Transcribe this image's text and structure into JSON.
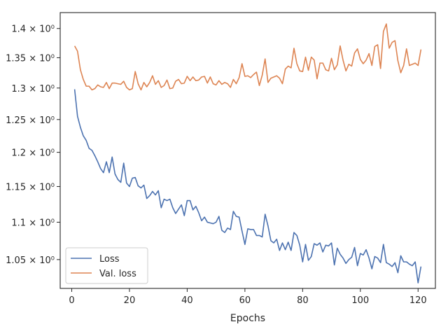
{
  "chart_data": {
    "type": "line",
    "title": "",
    "xlabel": "Epochs",
    "ylabel": "",
    "yscale": "log",
    "xlim": [
      -4,
      126
    ],
    "ylim": [
      1.013,
      1.428
    ],
    "grid": false,
    "legend_position": "lower-left",
    "x_ticks": [
      0,
      20,
      40,
      60,
      80,
      100,
      120
    ],
    "y_ticks": [
      {
        "value": 1.05,
        "label": "1.05 × 10⁰"
      },
      {
        "value": 1.1,
        "label": "1.1 × 10⁰"
      },
      {
        "value": 1.15,
        "label": "1.15 × 10⁰"
      },
      {
        "value": 1.2,
        "label": "1.2 × 10⁰"
      },
      {
        "value": 1.25,
        "label": "1.25 × 10⁰"
      },
      {
        "value": 1.3,
        "label": "1.3 × 10⁰"
      },
      {
        "value": 1.35,
        "label": "1.35 × 10⁰"
      },
      {
        "value": 1.4,
        "label": "1.4 × 10⁰"
      }
    ],
    "x": [
      1,
      2,
      3,
      4,
      5,
      6,
      7,
      8,
      9,
      10,
      11,
      12,
      13,
      14,
      15,
      16,
      17,
      18,
      19,
      20,
      21,
      22,
      23,
      24,
      25,
      26,
      27,
      28,
      29,
      30,
      31,
      32,
      33,
      34,
      35,
      36,
      37,
      38,
      39,
      40,
      41,
      42,
      43,
      44,
      45,
      46,
      47,
      48,
      49,
      50,
      51,
      52,
      53,
      54,
      55,
      56,
      57,
      58,
      59,
      60,
      61,
      62,
      63,
      64,
      65,
      66,
      67,
      68,
      69,
      70,
      71,
      72,
      73,
      74,
      75,
      76,
      77,
      78,
      79,
      80,
      81,
      82,
      83,
      84,
      85,
      86,
      87,
      88,
      89,
      90,
      91,
      92,
      93,
      94,
      95,
      96,
      97,
      98,
      99,
      100,
      101,
      102,
      103,
      104,
      105,
      106,
      107,
      108,
      109,
      110,
      111,
      112,
      113,
      114,
      115,
      116,
      117,
      118,
      119,
      120,
      121
    ],
    "series": [
      {
        "name": "Loss",
        "color": "#4c72b0",
        "values": [
          1.298,
          1.255,
          1.238,
          1.225,
          1.218,
          1.206,
          1.203,
          1.195,
          1.186,
          1.176,
          1.17,
          1.186,
          1.17,
          1.193,
          1.168,
          1.16,
          1.156,
          1.184,
          1.155,
          1.15,
          1.162,
          1.163,
          1.151,
          1.148,
          1.152,
          1.133,
          1.137,
          1.143,
          1.138,
          1.144,
          1.12,
          1.132,
          1.13,
          1.132,
          1.12,
          1.112,
          1.118,
          1.124,
          1.109,
          1.13,
          1.13,
          1.117,
          1.122,
          1.113,
          1.102,
          1.107,
          1.1,
          1.099,
          1.098,
          1.1,
          1.108,
          1.089,
          1.086,
          1.092,
          1.09,
          1.115,
          1.108,
          1.107,
          1.088,
          1.07,
          1.091,
          1.09,
          1.09,
          1.082,
          1.082,
          1.08,
          1.111,
          1.095,
          1.075,
          1.072,
          1.077,
          1.062,
          1.072,
          1.063,
          1.073,
          1.062,
          1.086,
          1.082,
          1.069,
          1.047,
          1.07,
          1.049,
          1.054,
          1.071,
          1.069,
          1.072,
          1.06,
          1.069,
          1.068,
          1.072,
          1.043,
          1.065,
          1.057,
          1.052,
          1.045,
          1.05,
          1.053,
          1.066,
          1.042,
          1.058,
          1.056,
          1.063,
          1.052,
          1.038,
          1.054,
          1.052,
          1.046,
          1.07,
          1.046,
          1.044,
          1.041,
          1.046,
          1.033,
          1.055,
          1.047,
          1.047,
          1.044,
          1.042,
          1.047,
          1.02,
          1.041
        ]
      },
      {
        "name": "Val. loss",
        "color": "#dd8452",
        "values": [
          1.37,
          1.361,
          1.33,
          1.314,
          1.303,
          1.303,
          1.297,
          1.299,
          1.305,
          1.302,
          1.301,
          1.309,
          1.299,
          1.308,
          1.308,
          1.307,
          1.306,
          1.311,
          1.301,
          1.297,
          1.299,
          1.327,
          1.307,
          1.297,
          1.309,
          1.302,
          1.309,
          1.32,
          1.306,
          1.312,
          1.301,
          1.304,
          1.313,
          1.299,
          1.3,
          1.311,
          1.314,
          1.307,
          1.308,
          1.319,
          1.312,
          1.318,
          1.312,
          1.313,
          1.318,
          1.319,
          1.308,
          1.318,
          1.307,
          1.305,
          1.312,
          1.306,
          1.309,
          1.307,
          1.301,
          1.314,
          1.307,
          1.317,
          1.34,
          1.319,
          1.32,
          1.317,
          1.322,
          1.326,
          1.304,
          1.321,
          1.348,
          1.309,
          1.316,
          1.318,
          1.32,
          1.316,
          1.307,
          1.331,
          1.336,
          1.333,
          1.366,
          1.34,
          1.328,
          1.327,
          1.351,
          1.329,
          1.351,
          1.346,
          1.315,
          1.341,
          1.341,
          1.33,
          1.328,
          1.349,
          1.33,
          1.338,
          1.37,
          1.346,
          1.328,
          1.339,
          1.336,
          1.358,
          1.365,
          1.347,
          1.34,
          1.346,
          1.357,
          1.337,
          1.369,
          1.372,
          1.332,
          1.395,
          1.408,
          1.366,
          1.376,
          1.379,
          1.345,
          1.325,
          1.337,
          1.365,
          1.337,
          1.339,
          1.341,
          1.337,
          1.364
        ]
      }
    ]
  }
}
